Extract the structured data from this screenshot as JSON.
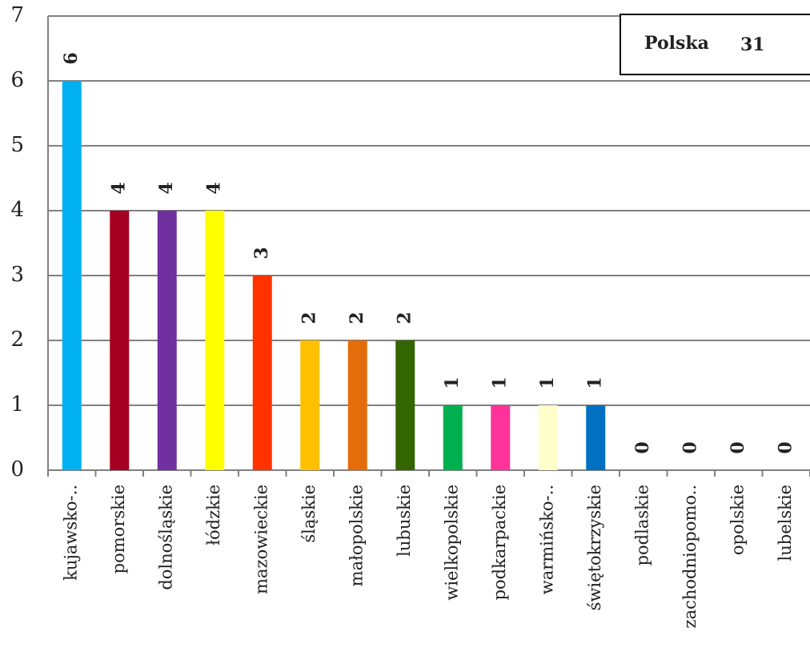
{
  "chart_data": {
    "type": "bar",
    "categories": [
      "kujawsko-..",
      "pomorskie",
      "dolnośląskie",
      "łódzkie",
      "mazowieckie",
      "śląskie",
      "małopolskie",
      "lubuskie",
      "wielkopolskie",
      "podkarpackie",
      "warmińsko-..",
      "świętokrzyskie",
      "podlaskie",
      "zachodniopomo..",
      "opolskie",
      "lubelskie"
    ],
    "values": [
      6,
      4,
      4,
      4,
      3,
      2,
      2,
      2,
      1,
      1,
      1,
      1,
      0,
      0,
      0,
      0
    ],
    "colors": [
      "#00b0f0",
      "#a50021",
      "#7030a0",
      "#ffff00",
      "#ff3300",
      "#ffc000",
      "#e46c0a",
      "#336600",
      "#00b050",
      "#ff3399",
      "#ffffcc",
      "#0070c0",
      null,
      null,
      null,
      null
    ],
    "ylim": [
      0,
      7
    ],
    "yticks": [
      0,
      1,
      2,
      3,
      4,
      5,
      6,
      7
    ],
    "grid": true,
    "annotation": {
      "label": "Polska",
      "value": 31
    }
  }
}
